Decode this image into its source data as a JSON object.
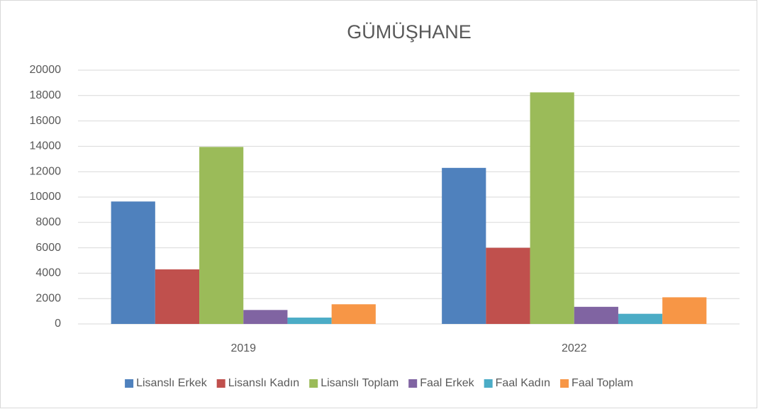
{
  "chart_data": {
    "type": "bar",
    "title": "GÜMÜŞHANE",
    "categories": [
      "2019",
      "2022"
    ],
    "series": [
      {
        "name": "Lisanslı Erkek",
        "color": "#4f81bd",
        "values": [
          9650,
          12300
        ]
      },
      {
        "name": "Lisanslı Kadın",
        "color": "#c0504d",
        "values": [
          4300,
          6000
        ]
      },
      {
        "name": "Lisanslı Toplam",
        "color": "#9bbb59",
        "values": [
          13950,
          18250
        ]
      },
      {
        "name": "Faal Erkek",
        "color": "#8064a2",
        "values": [
          1100,
          1350
        ]
      },
      {
        "name": "Faal Kadın",
        "color": "#4bacc6",
        "values": [
          500,
          800
        ]
      },
      {
        "name": "Faal Toplam",
        "color": "#f79646",
        "values": [
          1550,
          2100
        ]
      }
    ],
    "ylim": [
      0,
      20000
    ],
    "yticks": [
      0,
      2000,
      4000,
      6000,
      8000,
      10000,
      12000,
      14000,
      16000,
      18000,
      20000
    ],
    "grid": true,
    "legend": "bottom"
  }
}
